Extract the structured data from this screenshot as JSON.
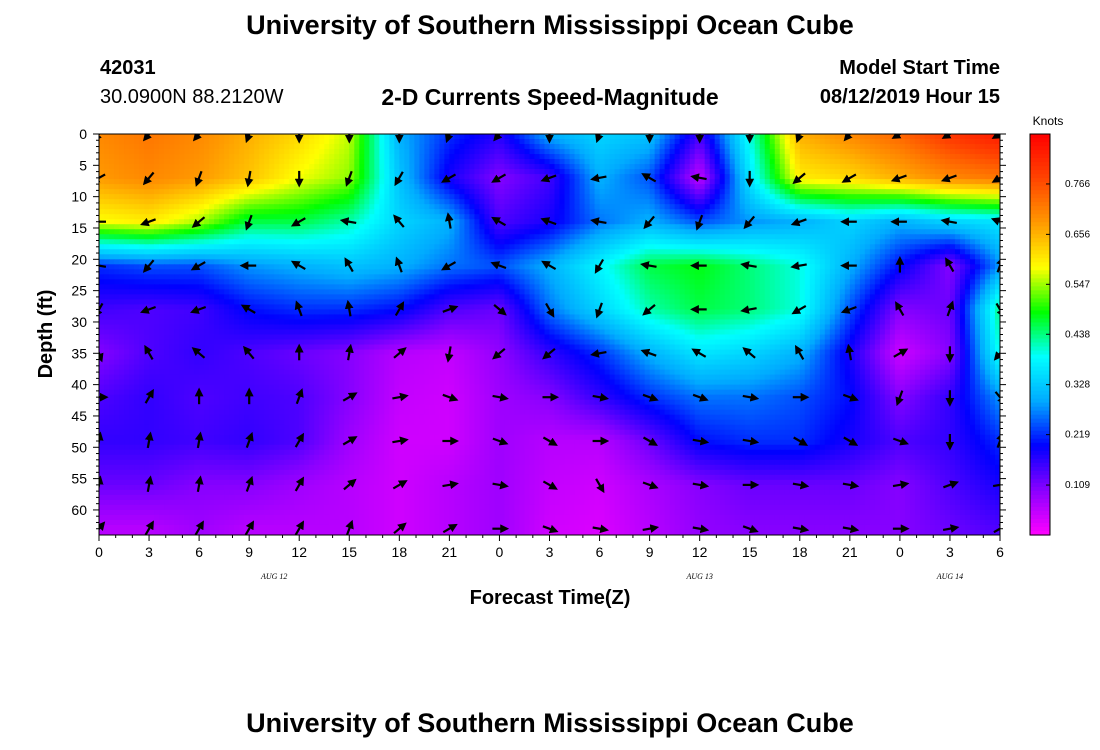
{
  "header": {
    "title": "University of Southern Mississippi Ocean Cube",
    "station_id": "42031",
    "station_coords": "30.0900N 88.2120W",
    "plot_title": "2-D Currents Speed-Magnitude",
    "model_start_label": "Model Start Time",
    "model_start_value": "08/12/2019 Hour 15"
  },
  "footer": {
    "title": "University of Southern Mississippi Ocean Cube"
  },
  "chart_data": {
    "type": "heatmap",
    "xlabel": "Forecast Time(Z)",
    "ylabel": "Depth (ft)",
    "x_tick_labels": [
      "0",
      "3",
      "6",
      "9",
      "12",
      "15",
      "18",
      "21",
      "0",
      "3",
      "6",
      "9",
      "12",
      "15",
      "18",
      "21",
      "0",
      "3",
      "6"
    ],
    "date_labels": [
      {
        "text": "AUG 12",
        "at_tick": 3.5
      },
      {
        "text": "AUG 13",
        "at_tick": 12
      },
      {
        "text": "AUG 14",
        "at_tick": 17
      }
    ],
    "y_tick_labels": [
      "0",
      "5",
      "10",
      "15",
      "20",
      "25",
      "30",
      "35",
      "40",
      "45",
      "50",
      "55",
      "60"
    ],
    "y_range": [
      0,
      64
    ],
    "colorbar": {
      "title": "Knots",
      "min": 0,
      "max": 0.875,
      "ticks": [
        "0.109",
        "0.219",
        "0.328",
        "0.438",
        "0.547",
        "0.656",
        "0.766"
      ],
      "colors": [
        "#ff00ff",
        "#8a00ff",
        "#0000ff",
        "#00aaff",
        "#00ffff",
        "#00ff00",
        "#ffff00",
        "#ff9900",
        "#ff4400",
        "#ff0000"
      ]
    },
    "grid_depths": [
      0,
      7,
      14,
      21,
      28,
      35,
      42,
      49,
      56,
      63
    ],
    "speed_grid": [
      [
        0.7,
        0.72,
        0.7,
        0.66,
        0.62,
        0.56,
        0.3,
        0.22,
        0.17,
        0.3,
        0.34,
        0.32,
        0.15,
        0.4,
        0.66,
        0.7,
        0.74,
        0.8,
        0.84
      ],
      [
        0.68,
        0.7,
        0.68,
        0.64,
        0.58,
        0.54,
        0.32,
        0.18,
        0.1,
        0.15,
        0.3,
        0.24,
        0.05,
        0.36,
        0.6,
        0.62,
        0.66,
        0.7,
        0.72
      ],
      [
        0.58,
        0.6,
        0.55,
        0.46,
        0.46,
        0.42,
        0.34,
        0.3,
        0.14,
        0.18,
        0.26,
        0.3,
        0.24,
        0.28,
        0.3,
        0.34,
        0.3,
        0.34,
        0.36
      ],
      [
        0.22,
        0.24,
        0.24,
        0.28,
        0.3,
        0.32,
        0.3,
        0.26,
        0.24,
        0.3,
        0.38,
        0.46,
        0.48,
        0.44,
        0.4,
        0.3,
        0.2,
        0.1,
        0.28
      ],
      [
        0.15,
        0.14,
        0.15,
        0.2,
        0.22,
        0.22,
        0.2,
        0.14,
        0.12,
        0.26,
        0.34,
        0.42,
        0.46,
        0.44,
        0.4,
        0.24,
        0.1,
        0.12,
        0.44
      ],
      [
        0.1,
        0.14,
        0.16,
        0.14,
        0.12,
        0.1,
        0.06,
        0.05,
        0.09,
        0.16,
        0.22,
        0.3,
        0.36,
        0.34,
        0.3,
        0.18,
        0.04,
        0.1,
        0.4
      ],
      [
        0.14,
        0.16,
        0.14,
        0.15,
        0.14,
        0.1,
        0.05,
        0.04,
        0.08,
        0.1,
        0.16,
        0.22,
        0.26,
        0.26,
        0.24,
        0.2,
        0.1,
        0.16,
        0.28
      ],
      [
        0.16,
        0.16,
        0.15,
        0.16,
        0.14,
        0.08,
        0.04,
        0.04,
        0.08,
        0.06,
        0.06,
        0.12,
        0.2,
        0.22,
        0.22,
        0.18,
        0.14,
        0.16,
        0.22
      ],
      [
        0.12,
        0.12,
        0.1,
        0.1,
        0.08,
        0.06,
        0.04,
        0.06,
        0.08,
        0.05,
        0.04,
        0.07,
        0.1,
        0.12,
        0.12,
        0.12,
        0.1,
        0.14,
        0.18
      ],
      [
        0.06,
        0.06,
        0.08,
        0.06,
        0.06,
        0.06,
        0.04,
        0.06,
        0.08,
        0.04,
        0.03,
        0.06,
        0.09,
        0.1,
        0.1,
        0.1,
        0.1,
        0.12,
        0.14
      ]
    ],
    "direction_grid_deg": [
      [
        220,
        220,
        220,
        200,
        180,
        180,
        180,
        200,
        220,
        180,
        200,
        180,
        180,
        180,
        200,
        220,
        240,
        240,
        240
      ],
      [
        240,
        220,
        200,
        190,
        180,
        200,
        210,
        240,
        240,
        250,
        260,
        300,
        280,
        180,
        230,
        240,
        250,
        250,
        240
      ],
      [
        270,
        250,
        230,
        200,
        240,
        280,
        320,
        350,
        300,
        290,
        280,
        220,
        200,
        220,
        250,
        270,
        270,
        280,
        290
      ],
      [
        280,
        220,
        240,
        270,
        300,
        330,
        340,
        240,
        290,
        300,
        210,
        280,
        270,
        280,
        260,
        270,
        0,
        330,
        20
      ],
      [
        210,
        250,
        250,
        300,
        340,
        350,
        30,
        70,
        130,
        150,
        200,
        230,
        270,
        260,
        240,
        250,
        330,
        20,
        150
      ],
      [
        160,
        330,
        310,
        320,
        0,
        10,
        50,
        190,
        230,
        230,
        260,
        290,
        300,
        310,
        330,
        350,
        60,
        180,
        220
      ],
      [
        90,
        30,
        0,
        0,
        20,
        60,
        80,
        110,
        100,
        90,
        100,
        110,
        110,
        100,
        90,
        110,
        200,
        180,
        140
      ],
      [
        10,
        10,
        10,
        20,
        30,
        60,
        80,
        90,
        110,
        120,
        90,
        120,
        100,
        100,
        120,
        120,
        110,
        180,
        20
      ],
      [
        10,
        10,
        10,
        20,
        30,
        50,
        60,
        80,
        100,
        120,
        150,
        110,
        100,
        90,
        100,
        100,
        80,
        70,
        80
      ],
      [
        40,
        30,
        30,
        30,
        30,
        20,
        50,
        60,
        90,
        110,
        100,
        80,
        100,
        110,
        100,
        100,
        90,
        80,
        60
      ]
    ]
  }
}
